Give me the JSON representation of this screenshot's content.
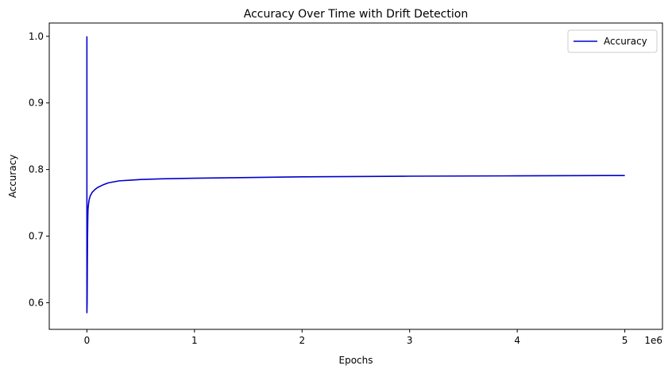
{
  "chart_data": {
    "type": "line",
    "title": "Accuracy Over Time with Drift Detection",
    "xlabel": "Epochs",
    "ylabel": "Accuracy",
    "x_offset_label": "1e6",
    "xlim": [
      -350000,
      5350000
    ],
    "ylim": [
      0.56,
      1.02
    ],
    "x_ticks": [
      0,
      1000000,
      2000000,
      3000000,
      4000000,
      5000000
    ],
    "x_tick_labels": [
      "0",
      "1",
      "2",
      "3",
      "4",
      "5"
    ],
    "y_ticks": [
      0.6,
      0.7,
      0.8,
      0.9,
      1.0
    ],
    "y_tick_labels": [
      "0.6",
      "0.7",
      "0.8",
      "0.9",
      "1.0"
    ],
    "grid": false,
    "legend_position": "top-right",
    "series": [
      {
        "name": "Accuracy",
        "color": "#0000cc",
        "points": [
          [
            0,
            1.0
          ],
          [
            0,
            0.585
          ],
          [
            2000,
            0.6
          ],
          [
            4000,
            0.66
          ],
          [
            6000,
            0.7
          ],
          [
            8000,
            0.725
          ],
          [
            10000,
            0.74
          ],
          [
            15000,
            0.748
          ],
          [
            20000,
            0.754
          ],
          [
            30000,
            0.76
          ],
          [
            50000,
            0.766
          ],
          [
            75000,
            0.77
          ],
          [
            100000,
            0.773
          ],
          [
            150000,
            0.777
          ],
          [
            200000,
            0.78
          ],
          [
            300000,
            0.783
          ],
          [
            400000,
            0.784
          ],
          [
            500000,
            0.785
          ],
          [
            700000,
            0.786
          ],
          [
            1000000,
            0.787
          ],
          [
            1500000,
            0.788
          ],
          [
            2000000,
            0.789
          ],
          [
            3000000,
            0.79
          ],
          [
            4000000,
            0.7905
          ],
          [
            5000000,
            0.791
          ]
        ]
      }
    ]
  }
}
